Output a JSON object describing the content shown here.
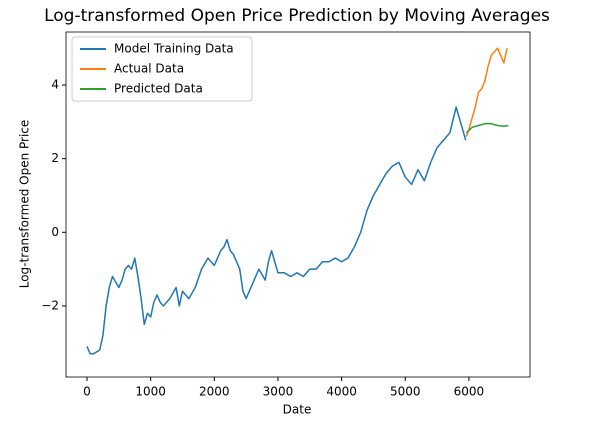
{
  "chart_data": {
    "type": "line",
    "title": "Log-transformed Open Price Prediction by Moving Averages",
    "xlabel": "Date",
    "ylabel": "Log-transformed Open Price",
    "xlim": [
      -330,
      6960
    ],
    "ylim": [
      -3.93,
      5.44
    ],
    "xticks": [
      0,
      1000,
      2000,
      3000,
      4000,
      5000,
      6000
    ],
    "yticks": [
      {
        "value": -2,
        "label": "−2"
      },
      0,
      2,
      4
    ],
    "legend": "upper left",
    "series": [
      {
        "name": "Model Training Data",
        "color": "#1f77b4",
        "x": [
          0,
          50,
          100,
          200,
          250,
          300,
          350,
          400,
          500,
          550,
          600,
          650,
          700,
          750,
          800,
          850,
          900,
          950,
          1000,
          1050,
          1100,
          1150,
          1200,
          1300,
          1400,
          1450,
          1500,
          1600,
          1700,
          1800,
          1900,
          2000,
          2100,
          2150,
          2200,
          2250,
          2300,
          2400,
          2450,
          2500,
          2600,
          2700,
          2800,
          2850,
          2900,
          2950,
          3000,
          3100,
          3200,
          3300,
          3400,
          3500,
          3600,
          3700,
          3800,
          3900,
          4000,
          4100,
          4200,
          4300,
          4400,
          4500,
          4600,
          4700,
          4800,
          4900,
          5000,
          5100,
          5200,
          5300,
          5400,
          5500,
          5600,
          5700,
          5800,
          5850,
          5900,
          5950
        ],
        "values": [
          -3.1,
          -3.3,
          -3.3,
          -3.2,
          -2.8,
          -2.0,
          -1.5,
          -1.2,
          -1.5,
          -1.3,
          -1.0,
          -0.9,
          -1.0,
          -0.7,
          -1.2,
          -1.8,
          -2.5,
          -2.2,
          -2.3,
          -1.9,
          -1.7,
          -1.9,
          -2.0,
          -1.8,
          -1.5,
          -2.0,
          -1.6,
          -1.8,
          -1.5,
          -1.0,
          -0.7,
          -0.9,
          -0.5,
          -0.4,
          -0.2,
          -0.5,
          -0.6,
          -1.0,
          -1.6,
          -1.8,
          -1.4,
          -1.0,
          -1.3,
          -0.8,
          -0.5,
          -0.8,
          -1.1,
          -1.1,
          -1.2,
          -1.1,
          -1.2,
          -1.0,
          -1.0,
          -0.8,
          -0.8,
          -0.7,
          -0.8,
          -0.7,
          -0.4,
          0.0,
          0.6,
          1.0,
          1.3,
          1.6,
          1.8,
          1.9,
          1.5,
          1.3,
          1.7,
          1.4,
          1.9,
          2.3,
          2.5,
          2.7,
          3.4,
          3.1,
          2.8,
          2.5
        ]
      },
      {
        "name": "Actual Data",
        "color": "#ff7f0e",
        "x": [
          5960,
          6000,
          6050,
          6100,
          6150,
          6200,
          6250,
          6300,
          6350,
          6400,
          6450,
          6500,
          6550,
          6600
        ],
        "values": [
          2.6,
          2.8,
          3.1,
          3.4,
          3.8,
          3.9,
          4.1,
          4.5,
          4.8,
          4.9,
          5.0,
          4.8,
          4.6,
          5.0
        ]
      },
      {
        "name": "Predicted Data",
        "color": "#2ca02c",
        "x": [
          5960,
          6050,
          6150,
          6250,
          6350,
          6450,
          6550,
          6620
        ],
        "values": [
          2.7,
          2.85,
          2.9,
          2.95,
          2.95,
          2.9,
          2.88,
          2.9
        ]
      }
    ]
  }
}
